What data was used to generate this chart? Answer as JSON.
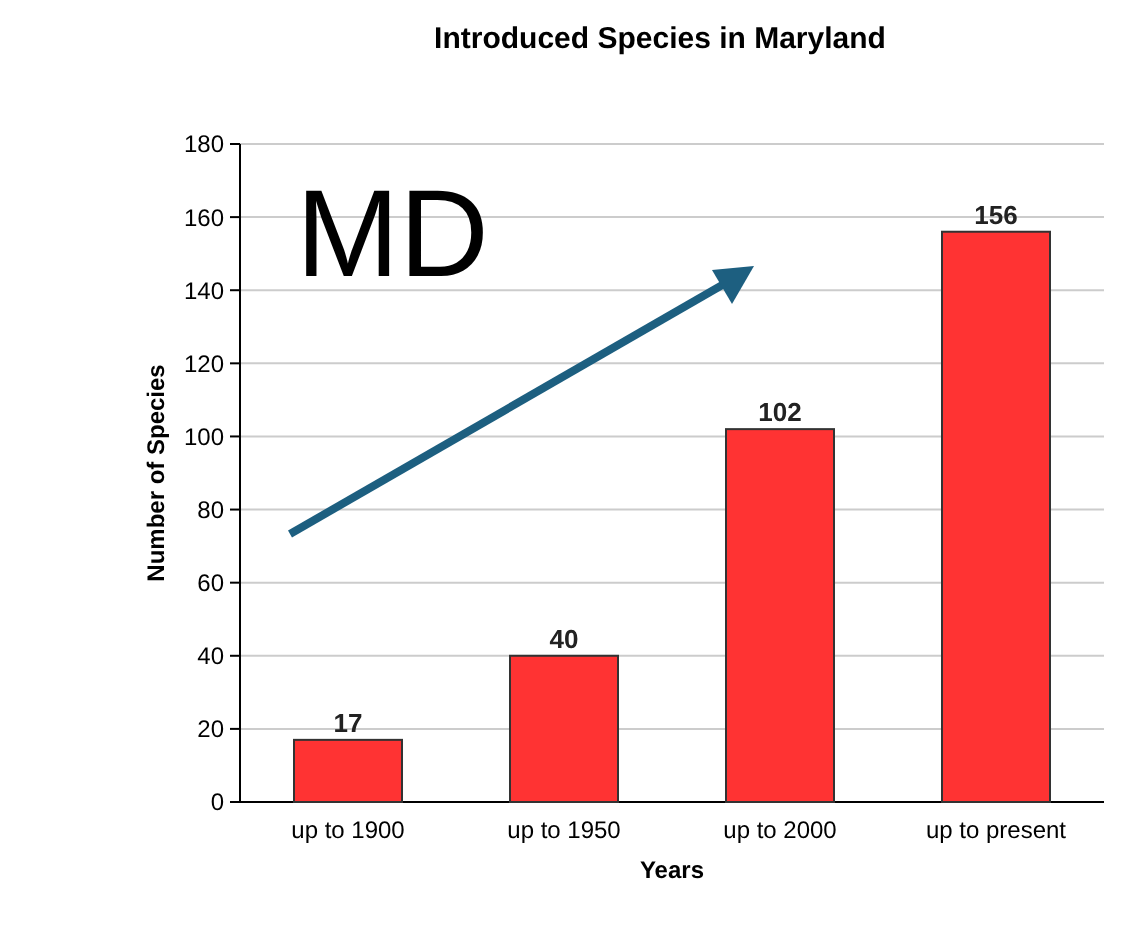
{
  "chart_data": {
    "type": "bar",
    "title": "Introduced Species in Maryland",
    "xlabel": "Years",
    "ylabel": "Number of Species",
    "categories": [
      "up to 1900",
      "up to 1950",
      "up to 2000",
      "up to present"
    ],
    "values": [
      17,
      40,
      102,
      156
    ],
    "color": "#ff3333",
    "ylim": [
      0,
      180
    ],
    "yticks": [
      0,
      20,
      40,
      60,
      80,
      100,
      120,
      140,
      160,
      180
    ],
    "grid": "y",
    "data_labels": true,
    "annotations": [
      "MD"
    ]
  }
}
